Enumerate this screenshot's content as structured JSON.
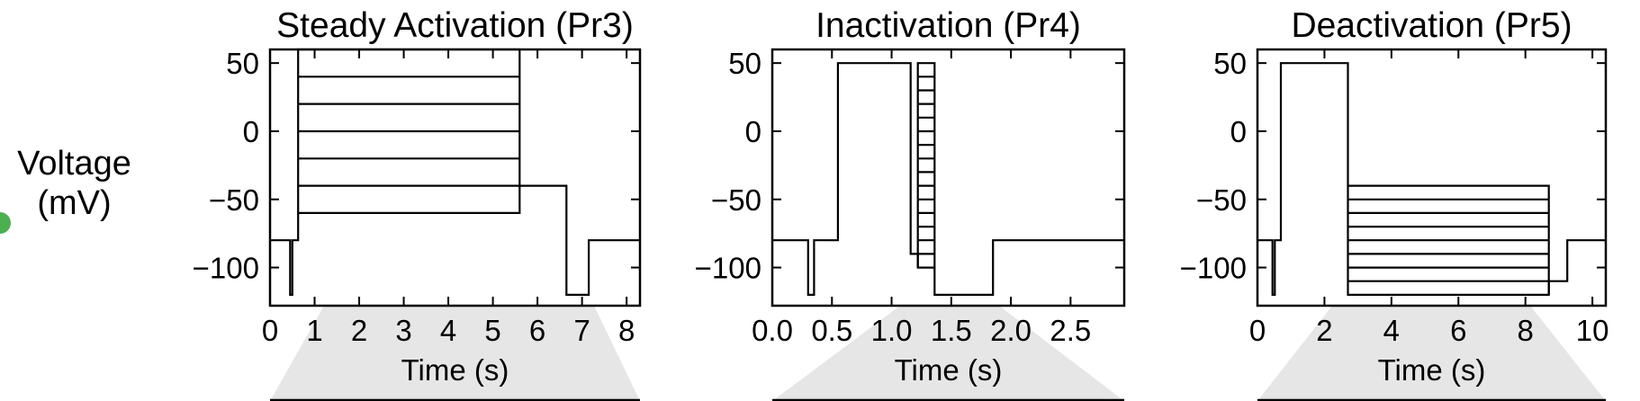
{
  "figure": {
    "ylabel_line1": "Voltage",
    "ylabel_line2": "(mV)"
  },
  "colors": {
    "trace": "#000000",
    "fan": "#e6e6e6",
    "marker_dot": "#4caf50"
  },
  "chart_data": [
    {
      "type": "line",
      "title": "Steady Activation (Pr3)",
      "xlabel": "Time (s)",
      "ylabel": "",
      "xlim": [
        0,
        8.3
      ],
      "ylim": [
        -128,
        60
      ],
      "xticks": [
        0,
        1,
        2,
        3,
        4,
        5,
        6,
        7,
        8
      ],
      "xtick_labels": [
        "0",
        "1",
        "2",
        "3",
        "4",
        "5",
        "6",
        "7",
        "8"
      ],
      "yticks": [
        50,
        0,
        -50,
        -100
      ],
      "ytick_labels": [
        "50",
        "0",
        "−50",
        "−100"
      ],
      "series": [
        {
          "x": [
            0,
            0.45,
            0.45,
            0.5,
            0.5,
            0.63,
            0.63,
            5.6,
            5.6,
            6.65,
            6.65,
            7.15,
            7.15,
            8.3
          ],
          "y": [
            -80,
            -80,
            -120,
            -120,
            -80,
            -80,
            60,
            60,
            -40,
            -40,
            -120,
            -120,
            -80,
            -80
          ]
        },
        {
          "x": [
            0.63,
            5.6
          ],
          "y": [
            40,
            40
          ]
        },
        {
          "x": [
            0.63,
            5.6
          ],
          "y": [
            20,
            20
          ]
        },
        {
          "x": [
            0.63,
            5.6
          ],
          "y": [
            0,
            0
          ]
        },
        {
          "x": [
            0.63,
            5.6
          ],
          "y": [
            -20,
            -20
          ]
        },
        {
          "x": [
            0.63,
            5.6
          ],
          "y": [
            -40,
            -40
          ]
        },
        {
          "x": [
            0.63,
            5.6,
            5.6
          ],
          "y": [
            -60,
            -60,
            -40
          ]
        }
      ]
    },
    {
      "type": "line",
      "title": "Inactivation (Pr4)",
      "xlabel": "Time (s)",
      "ylabel": "",
      "xlim": [
        0,
        2.95
      ],
      "ylim": [
        -128,
        60
      ],
      "xticks": [
        0,
        0.5,
        1.0,
        1.5,
        2.0,
        2.5
      ],
      "xtick_labels": [
        "0.0",
        "0.5",
        "1.0",
        "1.5",
        "2.0",
        "2.5"
      ],
      "yticks": [
        50,
        0,
        -50,
        -100
      ],
      "ytick_labels": [
        "50",
        "0",
        "−50",
        "−100"
      ],
      "series": [
        {
          "x": [
            0,
            0.3,
            0.3,
            0.35,
            0.35,
            0.55,
            0.55,
            1.16,
            1.16,
            1.22,
            1.22,
            1.36,
            1.36,
            1.85,
            1.85,
            2.95
          ],
          "y": [
            -80,
            -80,
            -120,
            -120,
            -80,
            -80,
            50,
            50,
            -90,
            -90,
            -100,
            -100,
            -120,
            -120,
            -80,
            -80
          ]
        },
        {
          "x": [
            1.22,
            1.22,
            1.36,
            1.36
          ],
          "y": [
            -100,
            50,
            50,
            -100
          ]
        },
        {
          "x": [
            1.22,
            1.36
          ],
          "y": [
            40,
            40
          ]
        },
        {
          "x": [
            1.22,
            1.36
          ],
          "y": [
            30,
            30
          ]
        },
        {
          "x": [
            1.22,
            1.36
          ],
          "y": [
            20,
            20
          ]
        },
        {
          "x": [
            1.22,
            1.36
          ],
          "y": [
            10,
            10
          ]
        },
        {
          "x": [
            1.22,
            1.36
          ],
          "y": [
            0,
            0
          ]
        },
        {
          "x": [
            1.22,
            1.36
          ],
          "y": [
            -10,
            -10
          ]
        },
        {
          "x": [
            1.22,
            1.36
          ],
          "y": [
            -20,
            -20
          ]
        },
        {
          "x": [
            1.22,
            1.36
          ],
          "y": [
            -30,
            -30
          ]
        },
        {
          "x": [
            1.22,
            1.36
          ],
          "y": [
            -40,
            -40
          ]
        },
        {
          "x": [
            1.22,
            1.36
          ],
          "y": [
            -50,
            -50
          ]
        },
        {
          "x": [
            1.22,
            1.36
          ],
          "y": [
            -60,
            -60
          ]
        },
        {
          "x": [
            1.22,
            1.36
          ],
          "y": [
            -70,
            -70
          ]
        },
        {
          "x": [
            1.22,
            1.36
          ],
          "y": [
            -80,
            -80
          ]
        },
        {
          "x": [
            1.22,
            1.36
          ],
          "y": [
            -90,
            -90
          ]
        }
      ]
    },
    {
      "type": "line",
      "title": "Deactivation (Pr5)",
      "xlabel": "Time (s)",
      "ylabel": "",
      "xlim": [
        0,
        10.4
      ],
      "ylim": [
        -128,
        60
      ],
      "xticks": [
        0,
        2,
        4,
        6,
        8,
        10
      ],
      "xtick_labels": [
        "0",
        "2",
        "4",
        "6",
        "8",
        "10"
      ],
      "yticks": [
        50,
        0,
        -50,
        -100
      ],
      "ytick_labels": [
        "50",
        "0",
        "−50",
        "−100"
      ],
      "series": [
        {
          "x": [
            0,
            0.45,
            0.45,
            0.52,
            0.52,
            0.7,
            0.7,
            2.7,
            2.7,
            8.7,
            8.7,
            9.25,
            9.25,
            10.4
          ],
          "y": [
            -80,
            -80,
            -120,
            -120,
            -80,
            -80,
            50,
            50,
            -120,
            -120,
            -110,
            -110,
            -80,
            -80
          ]
        },
        {
          "x": [
            2.7,
            8.7,
            8.7
          ],
          "y": [
            -40,
            -40,
            -120
          ]
        },
        {
          "x": [
            2.7,
            8.7
          ],
          "y": [
            -50,
            -50
          ]
        },
        {
          "x": [
            2.7,
            8.7
          ],
          "y": [
            -60,
            -60
          ]
        },
        {
          "x": [
            2.7,
            8.7
          ],
          "y": [
            -70,
            -70
          ]
        },
        {
          "x": [
            2.7,
            8.7
          ],
          "y": [
            -80,
            -80
          ]
        },
        {
          "x": [
            2.7,
            8.7
          ],
          "y": [
            -90,
            -90
          ]
        },
        {
          "x": [
            2.7,
            8.7
          ],
          "y": [
            -100,
            -100
          ]
        },
        {
          "x": [
            2.7,
            8.7
          ],
          "y": [
            -110,
            -110
          ]
        }
      ]
    }
  ]
}
